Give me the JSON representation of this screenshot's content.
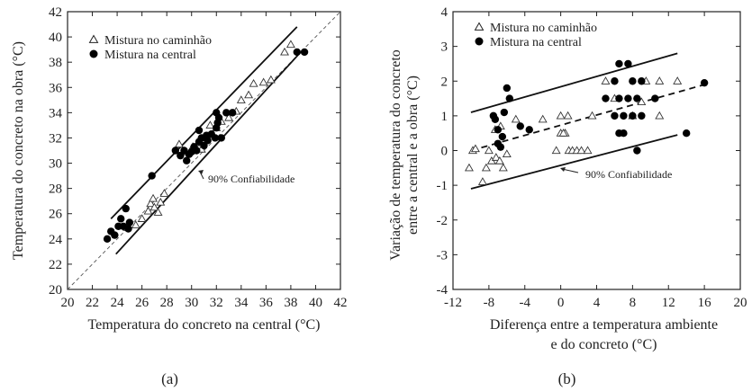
{
  "chart_data": [
    {
      "type": "scatter",
      "panel_label": "(a)",
      "xlabel": "Temperatura do concreto na central (°C)",
      "ylabel": "Temperatura do concreto na obra (°C)",
      "xlim": [
        20,
        42
      ],
      "ylim": [
        20,
        42
      ],
      "xticks": [
        "20",
        "22",
        "24",
        "26",
        "28",
        "30",
        "32",
        "34",
        "36",
        "38",
        "40",
        "42"
      ],
      "yticks": [
        "20",
        "22",
        "24",
        "26",
        "28",
        "30",
        "32",
        "34",
        "36",
        "38",
        "40",
        "42"
      ],
      "legend_position": "top-left",
      "annotation": "90% Confiabilidade",
      "series": [
        {
          "name": "Mistura no caminhão",
          "marker": "open-triangle",
          "points": [
            [
              24.8,
              24.9
            ],
            [
              25.5,
              25.1
            ],
            [
              26.0,
              25.6
            ],
            [
              26.5,
              26.2
            ],
            [
              26.7,
              26.8
            ],
            [
              26.9,
              27.2
            ],
            [
              27.0,
              26.5
            ],
            [
              27.3,
              26.1
            ],
            [
              27.5,
              26.9
            ],
            [
              27.8,
              27.6
            ],
            [
              29.0,
              31.5
            ],
            [
              29.4,
              30.9
            ],
            [
              30.1,
              31.3
            ],
            [
              30.5,
              31.6
            ],
            [
              30.8,
              31.1
            ],
            [
              31.1,
              32.0
            ],
            [
              31.5,
              33.0
            ],
            [
              32.0,
              32.8
            ],
            [
              32.4,
              33.3
            ],
            [
              33.0,
              33.6
            ],
            [
              33.6,
              34.1
            ],
            [
              34.0,
              35.0
            ],
            [
              34.6,
              35.4
            ],
            [
              35.0,
              36.3
            ],
            [
              35.8,
              36.4
            ],
            [
              36.4,
              36.6
            ],
            [
              37.5,
              38.8
            ],
            [
              38.0,
              39.4
            ]
          ]
        },
        {
          "name": "Mistura na central",
          "marker": "filled-circle",
          "points": [
            [
              23.2,
              24.0
            ],
            [
              23.5,
              24.6
            ],
            [
              23.8,
              24.3
            ],
            [
              24.1,
              25.0
            ],
            [
              24.3,
              25.6
            ],
            [
              24.5,
              25.0
            ],
            [
              24.7,
              26.4
            ],
            [
              24.9,
              24.8
            ],
            [
              25.0,
              25.3
            ],
            [
              26.8,
              29.0
            ],
            [
              28.7,
              31.0
            ],
            [
              29.1,
              30.6
            ],
            [
              29.4,
              31.0
            ],
            [
              29.6,
              30.2
            ],
            [
              29.8,
              30.7
            ],
            [
              30.0,
              30.9
            ],
            [
              30.2,
              31.3
            ],
            [
              30.4,
              31.0
            ],
            [
              30.6,
              31.7
            ],
            [
              30.8,
              32.0
            ],
            [
              30.6,
              32.6
            ],
            [
              31.0,
              31.4
            ],
            [
              31.2,
              32.2
            ],
            [
              31.3,
              31.8
            ],
            [
              31.6,
              32.3
            ],
            [
              31.9,
              32.0
            ],
            [
              32.0,
              32.8
            ],
            [
              32.1,
              33.2
            ],
            [
              32.2,
              33.6
            ],
            [
              32.0,
              34.0
            ],
            [
              32.4,
              32.0
            ],
            [
              32.8,
              34.0
            ],
            [
              33.3,
              34.0
            ],
            [
              38.5,
              38.8
            ],
            [
              39.1,
              38.8
            ]
          ]
        }
      ],
      "lines": [
        {
          "kind": "dashed",
          "from": [
            20,
            20
          ],
          "to": [
            42,
            42
          ]
        },
        {
          "kind": "solid",
          "from": [
            23.5,
            25.6
          ],
          "to": [
            38.5,
            40.8
          ]
        },
        {
          "kind": "solid",
          "from": [
            23.9,
            22.8
          ],
          "to": [
            38.8,
            38.8
          ]
        }
      ]
    },
    {
      "type": "scatter",
      "panel_label": "(b)",
      "xlabel_lines": [
        "Diferença entre a temperatura ambiente",
        "e do concreto (°C)"
      ],
      "ylabel_lines": [
        "Variação de temperatura do concreto",
        "entre a central e a obra (°C)"
      ],
      "xlim": [
        -12,
        20
      ],
      "ylim": [
        -4,
        4
      ],
      "xticks": [
        "-12",
        "-8",
        "-4",
        "0",
        "4",
        "8",
        "12",
        "16",
        "20"
      ],
      "yticks": [
        "-4",
        "-3",
        "-2",
        "-1",
        "0",
        "1",
        "2",
        "3",
        "4"
      ],
      "legend_position": "top-left",
      "annotation": "90% Confiabilidade",
      "series": [
        {
          "name": "Mistura no caminhão",
          "marker": "open-triangle",
          "points": [
            [
              -10.2,
              -0.5
            ],
            [
              -9.8,
              0.0
            ],
            [
              -8.7,
              -0.9
            ],
            [
              -8.3,
              -0.5
            ],
            [
              -8.0,
              0.0
            ],
            [
              -7.7,
              -0.3
            ],
            [
              -7.2,
              -0.2
            ],
            [
              -6.8,
              -0.3
            ],
            [
              -6.4,
              -0.5
            ],
            [
              -7.3,
              0.6
            ],
            [
              -6.7,
              0.7
            ],
            [
              -5.0,
              0.9
            ],
            [
              -2.0,
              0.9
            ],
            [
              -0.5,
              0.0
            ],
            [
              0.0,
              1.0
            ],
            [
              0.5,
              0.5
            ],
            [
              0.9,
              0.0
            ],
            [
              1.3,
              0.0
            ],
            [
              1.8,
              0.0
            ],
            [
              2.3,
              0.0
            ],
            [
              3.0,
              0.0
            ],
            [
              0.0,
              0.5
            ],
            [
              0.8,
              1.0
            ],
            [
              3.5,
              1.0
            ],
            [
              5.0,
              2.0
            ],
            [
              6.0,
              1.5
            ],
            [
              8.0,
              1.0
            ],
            [
              9.0,
              1.4
            ],
            [
              9.5,
              2.0
            ],
            [
              11.0,
              2.0
            ],
            [
              11.0,
              1.0
            ],
            [
              13.0,
              2.0
            ],
            [
              -9.5,
              0.05
            ],
            [
              -6.0,
              -0.1
            ],
            [
              0.3,
              0.5
            ]
          ]
        },
        {
          "name": "Mistura na central",
          "marker": "filled-circle",
          "points": [
            [
              -7.5,
              1.0
            ],
            [
              -7.3,
              0.9
            ],
            [
              -7.0,
              0.6
            ],
            [
              -7.0,
              0.2
            ],
            [
              -6.7,
              0.1
            ],
            [
              -6.5,
              0.4
            ],
            [
              -6.3,
              1.1
            ],
            [
              -6.0,
              1.8
            ],
            [
              -5.7,
              1.5
            ],
            [
              -4.5,
              0.7
            ],
            [
              -3.5,
              0.6
            ],
            [
              5.0,
              1.5
            ],
            [
              6.0,
              2.0
            ],
            [
              6.5,
              2.5
            ],
            [
              6.0,
              1.0
            ],
            [
              6.5,
              1.5
            ],
            [
              7.0,
              1.0
            ],
            [
              7.5,
              2.5
            ],
            [
              7.5,
              1.5
            ],
            [
              8.0,
              2.0
            ],
            [
              8.0,
              1.0
            ],
            [
              8.5,
              1.5
            ],
            [
              9.0,
              2.0
            ],
            [
              9.0,
              1.0
            ],
            [
              10.5,
              1.5
            ],
            [
              6.5,
              0.5
            ],
            [
              7.0,
              0.5
            ],
            [
              8.5,
              0.0
            ],
            [
              14.0,
              0.5
            ],
            [
              16.0,
              1.95
            ]
          ]
        }
      ],
      "lines": [
        {
          "kind": "solid",
          "from": [
            -10,
            1.1
          ],
          "to": [
            13,
            2.8
          ]
        },
        {
          "kind": "dashed",
          "from": [
            -10,
            0.0
          ],
          "to": [
            16,
            1.9
          ]
        },
        {
          "kind": "solid",
          "from": [
            -10,
            -1.1
          ],
          "to": [
            13,
            0.45
          ]
        }
      ]
    }
  ]
}
